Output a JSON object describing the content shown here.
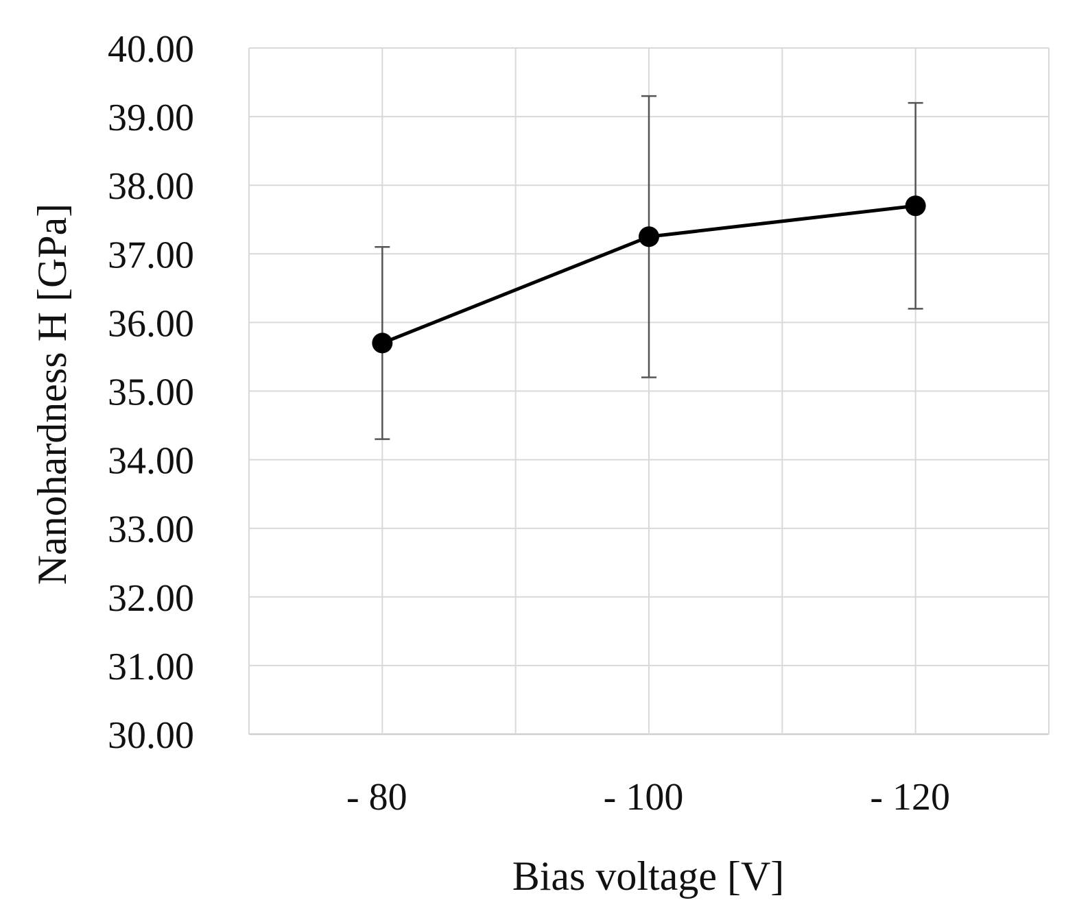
{
  "chart_data": {
    "type": "line",
    "title": "",
    "xlabel": "Bias voltage [V]",
    "ylabel": "Nanohardness H [GPa]",
    "categories": [
      "- 80",
      "- 100",
      "- 120"
    ],
    "series": [
      {
        "name": "Nanohardness H",
        "values": [
          35.7,
          37.25,
          37.7
        ],
        "error_low": [
          34.3,
          35.2,
          36.2
        ],
        "error_high": [
          37.1,
          39.3,
          39.2
        ],
        "color": "#000000"
      }
    ],
    "ylim": [
      30,
      40
    ],
    "ystep": 1,
    "ytick_labels": [
      "30.00",
      "31.00",
      "32.00",
      "33.00",
      "34.00",
      "35.00",
      "36.00",
      "37.00",
      "38.00",
      "39.00",
      "40.00"
    ],
    "grid": true,
    "legend": "none"
  }
}
